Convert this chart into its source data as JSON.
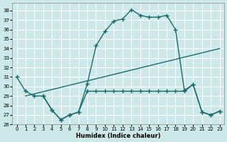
{
  "bg_color": "#cce8e8",
  "grid_color": "#ffffff",
  "line_color": "#1a6b6b",
  "marker": "+",
  "markersize": 4,
  "linewidth": 1.0,
  "xlabel": "Humidex (Indice chaleur)",
  "xlim": [
    -0.5,
    23.5
  ],
  "ylim": [
    26,
    38.8
  ],
  "yticks": [
    26,
    27,
    28,
    29,
    30,
    31,
    32,
    33,
    34,
    35,
    36,
    37,
    38
  ],
  "xticks": [
    0,
    1,
    2,
    3,
    4,
    5,
    6,
    7,
    8,
    9,
    10,
    11,
    12,
    13,
    14,
    15,
    16,
    17,
    18,
    19,
    20,
    21,
    22,
    23
  ],
  "line1_x": [
    0,
    1,
    2,
    3,
    4,
    5,
    6,
    7,
    8,
    9,
    10,
    11,
    12,
    13,
    14,
    15,
    16,
    17,
    18,
    19,
    20,
    21,
    22,
    23
  ],
  "line1_y": [
    31.0,
    29.5,
    29.0,
    29.0,
    27.5,
    26.5,
    27.0,
    27.3,
    30.3,
    34.3,
    35.8,
    36.9,
    37.1,
    38.1,
    37.5,
    37.3,
    37.3,
    37.5,
    36.0,
    29.6,
    30.2,
    27.3,
    27.0,
    27.4
  ],
  "line2_x": [
    1,
    23
  ],
  "line2_y": [
    29.0,
    34.0
  ],
  "line3_x": [
    3,
    4,
    5,
    6,
    7,
    8,
    9,
    10,
    11,
    12,
    13,
    14,
    15,
    16,
    17,
    18,
    19,
    20,
    21,
    22,
    23
  ],
  "line3_y": [
    29.0,
    27.5,
    26.5,
    27.0,
    27.3,
    29.5,
    29.5,
    29.5,
    29.5,
    29.5,
    29.5,
    29.5,
    29.5,
    29.5,
    29.5,
    29.5,
    29.5,
    30.2,
    27.3,
    27.0,
    27.4
  ]
}
